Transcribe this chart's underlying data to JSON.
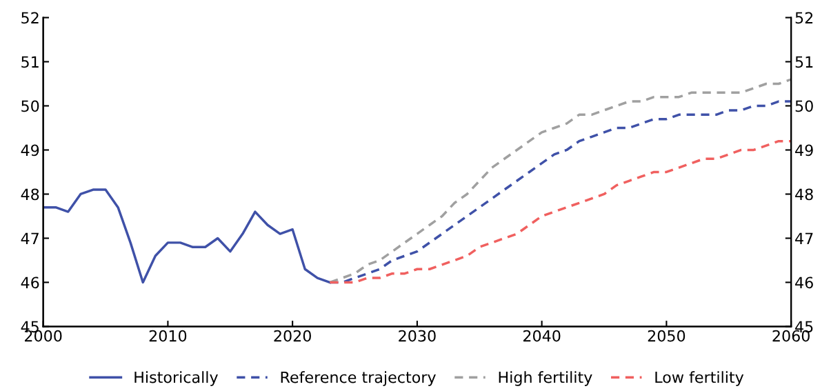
{
  "chart_data": {
    "type": "line",
    "xlim": [
      2000,
      2060
    ],
    "xticks": [
      2000,
      2010,
      2020,
      2030,
      2040,
      2050,
      2060
    ],
    "ylim": [
      45,
      52
    ],
    "yticks": [
      45,
      46,
      47,
      48,
      49,
      50,
      51,
      52
    ],
    "y2lim": [
      45,
      52
    ],
    "y2ticks": [
      45,
      46,
      47,
      48,
      49,
      50,
      51,
      52
    ],
    "grid": false,
    "legend": "bottom",
    "series": [
      {
        "name": "Historically",
        "color": "#3f51a8",
        "line_style": "solid",
        "x": [
          2000,
          2001,
          2002,
          2003,
          2004,
          2005,
          2006,
          2007,
          2008,
          2009,
          2010,
          2011,
          2012,
          2013,
          2014,
          2015,
          2016,
          2017,
          2018,
          2019,
          2020,
          2021,
          2022,
          2023
        ],
        "values": [
          47.7,
          47.7,
          47.6,
          48.0,
          48.1,
          48.1,
          47.7,
          46.9,
          46.0,
          46.6,
          46.9,
          46.9,
          46.8,
          46.8,
          47.0,
          46.7,
          47.1,
          47.6,
          47.3,
          47.1,
          47.2,
          46.3,
          46.1,
          46.0
        ]
      },
      {
        "name": "Reference trajectory",
        "color": "#3f51a8",
        "line_style": "dashed",
        "x": [
          2023,
          2024,
          2025,
          2026,
          2027,
          2028,
          2029,
          2030,
          2031,
          2032,
          2033,
          2034,
          2035,
          2036,
          2037,
          2038,
          2039,
          2040,
          2041,
          2042,
          2043,
          2044,
          2045,
          2046,
          2047,
          2048,
          2049,
          2050,
          2051,
          2052,
          2053,
          2054,
          2055,
          2056,
          2057,
          2058,
          2059,
          2060
        ],
        "values": [
          46.0,
          46.0,
          46.1,
          46.2,
          46.3,
          46.5,
          46.6,
          46.7,
          46.9,
          47.1,
          47.3,
          47.5,
          47.7,
          47.9,
          48.1,
          48.3,
          48.5,
          48.7,
          48.9,
          49.0,
          49.2,
          49.3,
          49.4,
          49.5,
          49.5,
          49.6,
          49.7,
          49.7,
          49.8,
          49.8,
          49.8,
          49.8,
          49.9,
          49.9,
          50.0,
          50.0,
          50.1,
          50.1
        ]
      },
      {
        "name": "High fertility",
        "color": "#a0a0a0",
        "line_style": "dashed",
        "x": [
          2023,
          2024,
          2025,
          2026,
          2027,
          2028,
          2029,
          2030,
          2031,
          2032,
          2033,
          2034,
          2035,
          2036,
          2037,
          2038,
          2039,
          2040,
          2041,
          2042,
          2043,
          2044,
          2045,
          2046,
          2047,
          2048,
          2049,
          2050,
          2051,
          2052,
          2053,
          2054,
          2055,
          2056,
          2057,
          2058,
          2059,
          2060
        ],
        "values": [
          46.0,
          46.1,
          46.2,
          46.4,
          46.5,
          46.7,
          46.9,
          47.1,
          47.3,
          47.5,
          47.8,
          48.0,
          48.3,
          48.6,
          48.8,
          49.0,
          49.2,
          49.4,
          49.5,
          49.6,
          49.8,
          49.8,
          49.9,
          50.0,
          50.1,
          50.1,
          50.2,
          50.2,
          50.2,
          50.3,
          50.3,
          50.3,
          50.3,
          50.3,
          50.4,
          50.5,
          50.5,
          50.6
        ]
      },
      {
        "name": "Low fertility",
        "color": "#f0605f",
        "line_style": "dashed",
        "x": [
          2023,
          2024,
          2025,
          2026,
          2027,
          2028,
          2029,
          2030,
          2031,
          2032,
          2033,
          2034,
          2035,
          2036,
          2037,
          2038,
          2039,
          2040,
          2041,
          2042,
          2043,
          2044,
          2045,
          2046,
          2047,
          2048,
          2049,
          2050,
          2051,
          2052,
          2053,
          2054,
          2055,
          2056,
          2057,
          2058,
          2059,
          2060
        ],
        "values": [
          46.0,
          46.0,
          46.0,
          46.1,
          46.1,
          46.2,
          46.2,
          46.3,
          46.3,
          46.4,
          46.5,
          46.6,
          46.8,
          46.9,
          47.0,
          47.1,
          47.3,
          47.5,
          47.6,
          47.7,
          47.8,
          47.9,
          48.0,
          48.2,
          48.3,
          48.4,
          48.5,
          48.5,
          48.6,
          48.7,
          48.8,
          48.8,
          48.9,
          49.0,
          49.0,
          49.1,
          49.2,
          49.2
        ]
      }
    ]
  }
}
